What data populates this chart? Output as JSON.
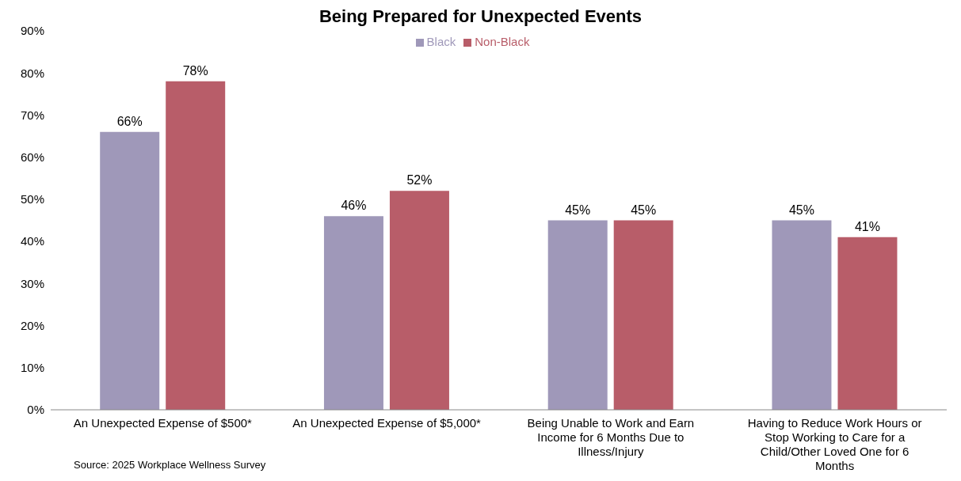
{
  "chart_data": {
    "type": "bar",
    "title": "Being Prepared for Unexpected Events",
    "categories": [
      "An Unexpected Expense of $500*",
      "An Unexpected Expense of $5,000*",
      "Being Unable to Work and Earn Income for 6 Months Due to Illness/Injury",
      "Having to Reduce Work Hours or Stop Working to Care for a Child/Other Loved One for 6 Months"
    ],
    "series": [
      {
        "name": "Black",
        "color": "#9f98b9",
        "values": [
          66,
          46,
          45,
          45
        ],
        "value_labels": [
          "66%",
          "46%",
          "45%",
          "45%"
        ]
      },
      {
        "name": "Non-Black",
        "color": "#b85d69",
        "values": [
          78,
          52,
          45,
          41
        ],
        "value_labels": [
          "78%",
          "52%",
          "45%",
          "41%"
        ]
      }
    ],
    "ylim": [
      0,
      90
    ],
    "yticks": [
      {
        "value": 0,
        "label": "0%"
      },
      {
        "value": 10,
        "label": "10%"
      },
      {
        "value": 20,
        "label": "20%"
      },
      {
        "value": 30,
        "label": "30%"
      },
      {
        "value": 40,
        "label": "40%"
      },
      {
        "value": 50,
        "label": "50%"
      },
      {
        "value": 60,
        "label": "60%"
      },
      {
        "value": 70,
        "label": "70%"
      },
      {
        "value": 80,
        "label": "80%"
      },
      {
        "value": 90,
        "label": "90%"
      }
    ],
    "grid": false,
    "legend": "top",
    "annotations": [
      "Source: 2025 Workplace Wellness Survey"
    ]
  }
}
